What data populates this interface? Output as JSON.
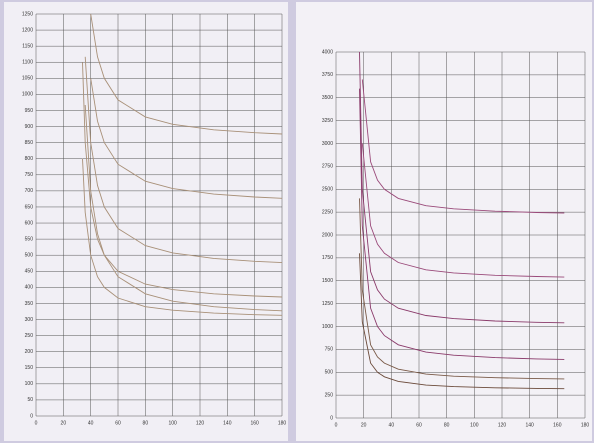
{
  "chart_data": [
    {
      "type": "line",
      "x": [
        34,
        36,
        40,
        45,
        50,
        60,
        80,
        100,
        130,
        160,
        180
      ],
      "series": [
        {
          "color": "#a89078",
          "values": [
            800,
            633,
            500,
            433,
            400,
            367,
            340,
            329,
            320,
            315,
            313
          ]
        },
        {
          "color": "#a89078",
          "values": [
            1100,
            850,
            650,
            550,
            500,
            450,
            410,
            393,
            380,
            373,
            370
          ]
        },
        {
          "color": "#a89078",
          "values": [
            null,
            967,
            700,
            567,
            500,
            433,
            380,
            357,
            340,
            331,
            327
          ]
        },
        {
          "color": "#a89078",
          "values": [
            null,
            1117,
            850,
            717,
            650,
            583,
            530,
            507,
            490,
            481,
            477
          ]
        },
        {
          "color": "#a89078",
          "values": [
            null,
            null,
            1050,
            917,
            850,
            783,
            730,
            707,
            690,
            681,
            677
          ]
        },
        {
          "color": "#a89078",
          "values": [
            null,
            null,
            1250,
            1117,
            1050,
            983,
            930,
            907,
            890,
            881,
            877
          ]
        }
      ],
      "xlim": [
        0,
        180
      ],
      "ylim": [
        0,
        1250
      ],
      "xticks": [
        0,
        20,
        40,
        60,
        80,
        100,
        120,
        140,
        160,
        180
      ],
      "yticks": [
        0,
        50,
        100,
        150,
        200,
        250,
        300,
        350,
        400,
        450,
        500,
        550,
        600,
        650,
        700,
        750,
        800,
        850,
        900,
        950,
        1000,
        1050,
        1100,
        1150,
        1200,
        1250
      ],
      "grid": true
    },
    {
      "type": "line",
      "x": [
        17,
        19,
        25,
        30,
        35,
        45,
        65,
        85,
        115,
        145,
        165
      ],
      "series": [
        {
          "color": "#6b4a3a",
          "values": [
            1800,
            1050,
            600,
            500,
            450,
            400,
            360,
            343,
            330,
            323,
            320
          ]
        },
        {
          "color": "#7a5a48",
          "values": [
            2400,
            1400,
            800,
            667,
            600,
            533,
            480,
            457,
            440,
            431,
            427
          ]
        },
        {
          "color": "#8a3a6a",
          "values": [
            3600,
            2100,
            1200,
            1000,
            900,
            800,
            720,
            686,
            660,
            646,
            640
          ]
        },
        {
          "color": "#8a3a6a",
          "values": [
            4000,
            2500,
            1600,
            1400,
            1300,
            1200,
            1120,
            1086,
            1060,
            1046,
            1040
          ]
        },
        {
          "color": "#9a4a7a",
          "values": [
            null,
            3000,
            2100,
            1900,
            1800,
            1700,
            1620,
            1586,
            1560,
            1546,
            1540
          ]
        },
        {
          "color": "#9a4a7a",
          "values": [
            null,
            3700,
            2800,
            2600,
            2500,
            2400,
            2320,
            2286,
            2260,
            2246,
            2240
          ]
        }
      ],
      "xlim": [
        0,
        180
      ],
      "ylim": [
        0,
        4000
      ],
      "xticks": [
        0,
        20,
        40,
        60,
        80,
        100,
        120,
        140,
        160,
        180
      ],
      "yticks": [
        0,
        250,
        500,
        750,
        1000,
        1250,
        1500,
        1750,
        2000,
        2250,
        2500,
        2750,
        3000,
        3250,
        3500,
        3750,
        4000
      ],
      "grid": true
    }
  ]
}
